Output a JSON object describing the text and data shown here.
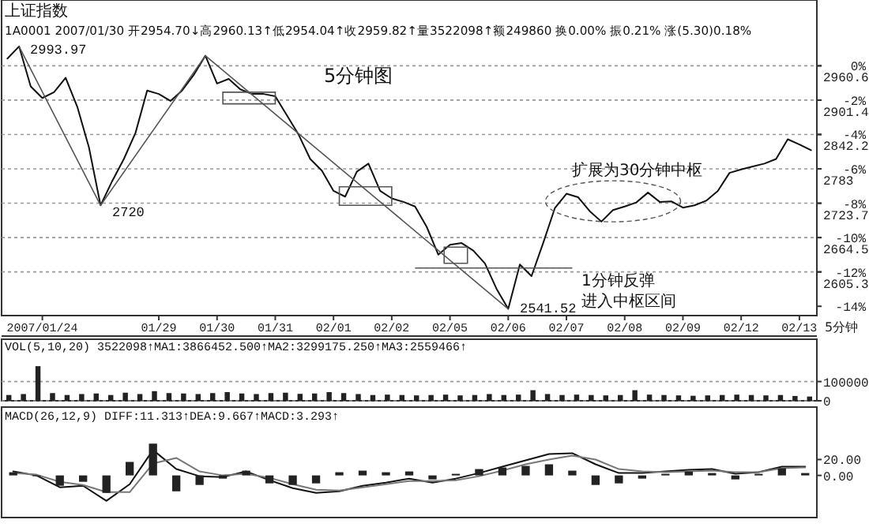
{
  "chart_data": [
    {
      "type": "line",
      "title": "上证指数",
      "subtitle": "1A0001 2007/01/30 开2954.70↓高2960.13↑低2954.04↑收2959.82↑量3522098↑额249860 换0.00% 振0.21% 涨(5.30)0.18%",
      "xlabel": "5分钟",
      "categories": [
        null,
        null,
        null,
        "2007/01/24",
        null,
        null,
        null,
        null,
        null,
        null,
        null,
        null,
        null,
        "01/29",
        null,
        null,
        null,
        null,
        "01/30",
        null,
        null,
        null,
        null,
        "01/31",
        null,
        null,
        null,
        null,
        "02/01",
        null,
        null,
        null,
        null,
        "02/02",
        null,
        null,
        null,
        null,
        "02/05",
        null,
        null,
        null,
        null,
        "02/06",
        null,
        null,
        null,
        null,
        "02/07",
        null,
        null,
        null,
        null,
        "02/08",
        null,
        null,
        null,
        null,
        "02/09",
        null,
        null,
        null,
        null,
        "02/12",
        null,
        null,
        null,
        null,
        "02/13",
        null
      ],
      "ylim": [
        2530,
        3074
      ],
      "yticks": [
        2960.6,
        2901.4,
        2842.2,
        2783.0,
        2723.7,
        2664.5,
        2605.3
      ],
      "y2lim": [
        -14.54,
        3.83
      ],
      "y2ticks": [
        {
          "value": 0,
          "label": "0%"
        },
        {
          "value": -2,
          "label": "-2%"
        },
        {
          "value": -4,
          "label": "-4%"
        },
        {
          "value": -6,
          "label": "-6%"
        },
        {
          "value": -8,
          "label": "-8%"
        },
        {
          "value": -10,
          "label": "-10%"
        },
        {
          "value": -12,
          "label": "-12%"
        },
        {
          "value": -14,
          "label": "-14%"
        }
      ],
      "grid": "y",
      "line_style": "solid",
      "series": [
        {
          "color": "#111111",
          "values": [
            2973,
            2993.97,
            2925,
            2905,
            2915,
            2940,
            2890,
            2820,
            2720,
            2762,
            2800,
            2845,
            2918,
            2912,
            2900,
            2918,
            2945,
            2978,
            2930,
            2938,
            2920,
            2912,
            2912,
            2908,
            2875,
            2842,
            2800,
            2780,
            2745,
            2735,
            2778,
            2792,
            2745,
            2732,
            2726,
            2718,
            2683,
            2635,
            2652,
            2655,
            2642,
            2620,
            2576,
            2541.52,
            2618,
            2598,
            2655,
            2715,
            2740,
            2734,
            2710,
            2692,
            2712,
            2718,
            2725,
            2742,
            2726,
            2727,
            2716,
            2720,
            2728,
            2745,
            2776,
            2782,
            2787,
            2792,
            2800,
            2834,
            2825,
            2815
          ]
        }
      ],
      "annotations": [
        "2993.97",
        "2720",
        "2541.52",
        "5分钟图",
        "扩展为30分钟中枢",
        "1分钟反弹",
        "进入中枢区间"
      ]
    },
    {
      "type": "bar",
      "title": "VOL(5,10,20) 3522098↑MA1:3866452.500↑MA2:3299175.250↑MA3:2559466↑",
      "categories": [
        null,
        null,
        null,
        null,
        null,
        null,
        null,
        null,
        null,
        null,
        null,
        null,
        null,
        null,
        null,
        null,
        null,
        null,
        null,
        null,
        null,
        null,
        null,
        null,
        null,
        null,
        null,
        null,
        null,
        null,
        null,
        null,
        null,
        null,
        null,
        null,
        null,
        null,
        null,
        null,
        null,
        null,
        null,
        null,
        null,
        null,
        null,
        null,
        null,
        null,
        null,
        null,
        null,
        null,
        null,
        null
      ],
      "ylim": [
        0,
        320000
      ],
      "yticks": [
        100000,
        0
      ],
      "grid": "y",
      "tick_labels": "y",
      "series": [
        {
          "color": "#222222",
          "values": [
            30000,
            35000,
            180000,
            40000,
            30000,
            35000,
            38000,
            30000,
            42000,
            35000,
            50000,
            40000,
            38000,
            35000,
            40000,
            45000,
            38000,
            35000,
            40000,
            42000,
            36000,
            38000,
            45000,
            40000,
            35000,
            30000,
            32000,
            30000,
            28000,
            30000,
            32000,
            28000,
            30000,
            35000,
            30000,
            32000,
            55000,
            35000,
            30000,
            32000,
            30000,
            28000,
            30000,
            55000,
            32000,
            30000,
            28000,
            26000,
            28000,
            30000,
            32000,
            30000,
            28000,
            30000,
            25000,
            22000
          ]
        }
      ]
    },
    {
      "type": "bar",
      "title": "MACD(26,12,9) DIFF:11.313↑DEA:9.667↑MACD:3.293↑",
      "categories": [
        null,
        null,
        null,
        null,
        null,
        null,
        null,
        null,
        null,
        null,
        null,
        null,
        null,
        null,
        null,
        null,
        null,
        null,
        null,
        null,
        null,
        null,
        null,
        null,
        null,
        null,
        null,
        null,
        null,
        null,
        null,
        null,
        null,
        null,
        null
      ],
      "ylim": [
        -53,
        86
      ],
      "yticks": [
        {
          "value": 20,
          "label": "20.00"
        },
        {
          "value": 0,
          "label": "0.00"
        }
      ],
      "tick_labels": "y",
      "series": [
        {
          "color": "#222222",
          "values": [
            4,
            -1,
            -13,
            -8,
            -22,
            17,
            40,
            -20,
            -12,
            -4,
            6,
            -10,
            -12,
            -10,
            4,
            6,
            4,
            5,
            -5,
            2,
            8,
            10,
            12,
            14,
            6,
            -12,
            -10,
            -4,
            2,
            5,
            3,
            -5,
            2,
            9,
            3
          ]
        },
        {
          "type": "line",
          "color": "#111111",
          "values": [
            5,
            0,
            -15,
            -13,
            -32,
            -11,
            32,
            8,
            -1,
            -2,
            5,
            -6,
            -16,
            -22,
            -20,
            -13,
            -9,
            -4,
            -9,
            -4,
            3,
            11,
            19,
            27,
            28,
            14,
            3,
            3,
            5,
            7,
            8,
            2,
            4,
            11,
            11
          ]
        },
        {
          "type": "line",
          "color": "#777777",
          "values": [
            3,
            1,
            -8,
            -12,
            -21,
            -21,
            15,
            22,
            5,
            0,
            2,
            -3,
            -11,
            -18,
            -19,
            -15,
            -11,
            -7,
            -7,
            -6,
            -1,
            6,
            14,
            20,
            25,
            20,
            8,
            5,
            4,
            5,
            6,
            4,
            4,
            9,
            10
          ]
        }
      ]
    }
  ]
}
